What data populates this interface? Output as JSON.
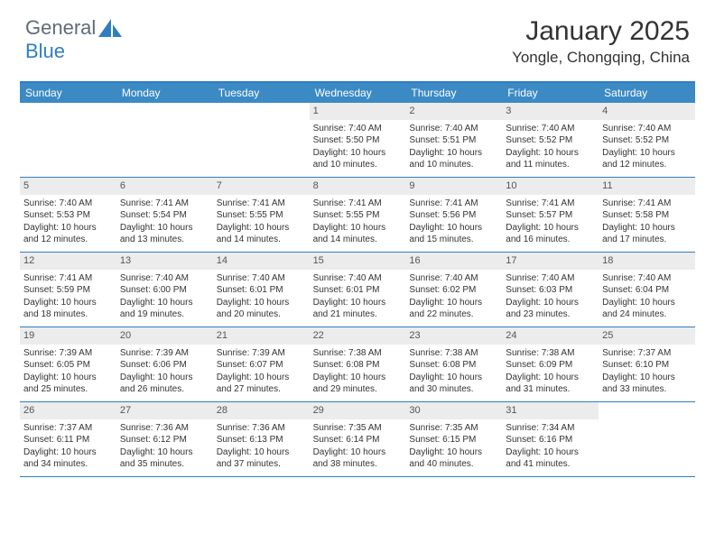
{
  "logo": {
    "text_a": "General",
    "text_b": "Blue",
    "icon_color": "#2f7ec2"
  },
  "title": "January 2025",
  "location": "Yongle, Chongqing, China",
  "colors": {
    "header_bg": "#3b8ac4",
    "header_border": "#2f7ec2",
    "daynum_bg": "#ececec",
    "text": "#333333"
  },
  "dayNames": [
    "Sunday",
    "Monday",
    "Tuesday",
    "Wednesday",
    "Thursday",
    "Friday",
    "Saturday"
  ],
  "weeks": [
    [
      {
        "empty": true
      },
      {
        "empty": true
      },
      {
        "empty": true
      },
      {
        "n": "1",
        "sunrise": "7:40 AM",
        "sunset": "5:50 PM",
        "daylight": "10 hours and 10 minutes."
      },
      {
        "n": "2",
        "sunrise": "7:40 AM",
        "sunset": "5:51 PM",
        "daylight": "10 hours and 10 minutes."
      },
      {
        "n": "3",
        "sunrise": "7:40 AM",
        "sunset": "5:52 PM",
        "daylight": "10 hours and 11 minutes."
      },
      {
        "n": "4",
        "sunrise": "7:40 AM",
        "sunset": "5:52 PM",
        "daylight": "10 hours and 12 minutes."
      }
    ],
    [
      {
        "n": "5",
        "sunrise": "7:40 AM",
        "sunset": "5:53 PM",
        "daylight": "10 hours and 12 minutes."
      },
      {
        "n": "6",
        "sunrise": "7:41 AM",
        "sunset": "5:54 PM",
        "daylight": "10 hours and 13 minutes."
      },
      {
        "n": "7",
        "sunrise": "7:41 AM",
        "sunset": "5:55 PM",
        "daylight": "10 hours and 14 minutes."
      },
      {
        "n": "8",
        "sunrise": "7:41 AM",
        "sunset": "5:55 PM",
        "daylight": "10 hours and 14 minutes."
      },
      {
        "n": "9",
        "sunrise": "7:41 AM",
        "sunset": "5:56 PM",
        "daylight": "10 hours and 15 minutes."
      },
      {
        "n": "10",
        "sunrise": "7:41 AM",
        "sunset": "5:57 PM",
        "daylight": "10 hours and 16 minutes."
      },
      {
        "n": "11",
        "sunrise": "7:41 AM",
        "sunset": "5:58 PM",
        "daylight": "10 hours and 17 minutes."
      }
    ],
    [
      {
        "n": "12",
        "sunrise": "7:41 AM",
        "sunset": "5:59 PM",
        "daylight": "10 hours and 18 minutes."
      },
      {
        "n": "13",
        "sunrise": "7:40 AM",
        "sunset": "6:00 PM",
        "daylight": "10 hours and 19 minutes."
      },
      {
        "n": "14",
        "sunrise": "7:40 AM",
        "sunset": "6:01 PM",
        "daylight": "10 hours and 20 minutes."
      },
      {
        "n": "15",
        "sunrise": "7:40 AM",
        "sunset": "6:01 PM",
        "daylight": "10 hours and 21 minutes."
      },
      {
        "n": "16",
        "sunrise": "7:40 AM",
        "sunset": "6:02 PM",
        "daylight": "10 hours and 22 minutes."
      },
      {
        "n": "17",
        "sunrise": "7:40 AM",
        "sunset": "6:03 PM",
        "daylight": "10 hours and 23 minutes."
      },
      {
        "n": "18",
        "sunrise": "7:40 AM",
        "sunset": "6:04 PM",
        "daylight": "10 hours and 24 minutes."
      }
    ],
    [
      {
        "n": "19",
        "sunrise": "7:39 AM",
        "sunset": "6:05 PM",
        "daylight": "10 hours and 25 minutes."
      },
      {
        "n": "20",
        "sunrise": "7:39 AM",
        "sunset": "6:06 PM",
        "daylight": "10 hours and 26 minutes."
      },
      {
        "n": "21",
        "sunrise": "7:39 AM",
        "sunset": "6:07 PM",
        "daylight": "10 hours and 27 minutes."
      },
      {
        "n": "22",
        "sunrise": "7:38 AM",
        "sunset": "6:08 PM",
        "daylight": "10 hours and 29 minutes."
      },
      {
        "n": "23",
        "sunrise": "7:38 AM",
        "sunset": "6:08 PM",
        "daylight": "10 hours and 30 minutes."
      },
      {
        "n": "24",
        "sunrise": "7:38 AM",
        "sunset": "6:09 PM",
        "daylight": "10 hours and 31 minutes."
      },
      {
        "n": "25",
        "sunrise": "7:37 AM",
        "sunset": "6:10 PM",
        "daylight": "10 hours and 33 minutes."
      }
    ],
    [
      {
        "n": "26",
        "sunrise": "7:37 AM",
        "sunset": "6:11 PM",
        "daylight": "10 hours and 34 minutes."
      },
      {
        "n": "27",
        "sunrise": "7:36 AM",
        "sunset": "6:12 PM",
        "daylight": "10 hours and 35 minutes."
      },
      {
        "n": "28",
        "sunrise": "7:36 AM",
        "sunset": "6:13 PM",
        "daylight": "10 hours and 37 minutes."
      },
      {
        "n": "29",
        "sunrise": "7:35 AM",
        "sunset": "6:14 PM",
        "daylight": "10 hours and 38 minutes."
      },
      {
        "n": "30",
        "sunrise": "7:35 AM",
        "sunset": "6:15 PM",
        "daylight": "10 hours and 40 minutes."
      },
      {
        "n": "31",
        "sunrise": "7:34 AM",
        "sunset": "6:16 PM",
        "daylight": "10 hours and 41 minutes."
      },
      {
        "empty": true
      }
    ]
  ],
  "labels": {
    "sunrise": "Sunrise: ",
    "sunset": "Sunset: ",
    "daylight": "Daylight: "
  }
}
